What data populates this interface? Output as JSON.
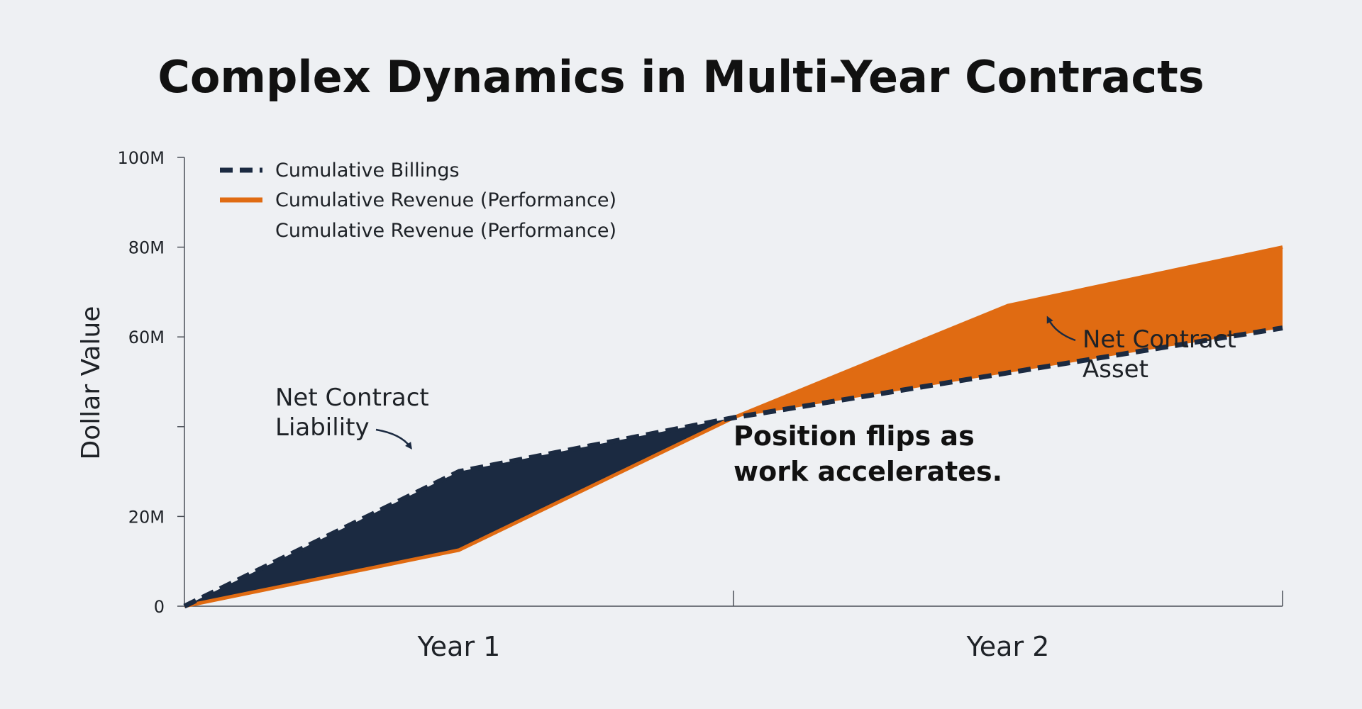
{
  "colors": {
    "background": "#eef0f3",
    "billings": "#1b2a41",
    "revenue": "#e06b12",
    "axis": "#4a4f57",
    "text": "#1e2227"
  },
  "chart_data": {
    "type": "area",
    "title": "Complex Dynamics in Multi-Year Contracts",
    "xlabel": "",
    "ylabel": "Dollar Value",
    "x_tick_labels": [
      "Year 1",
      "Year 2"
    ],
    "y_ticks": [
      0,
      20,
      40,
      60,
      80,
      100
    ],
    "y_tick_labels": [
      "0",
      "20M",
      "",
      "60M",
      "80M",
      "100M"
    ],
    "ylim": [
      0,
      100
    ],
    "xlim": [
      0,
      2
    ],
    "grid": false,
    "legend_position": "top-left",
    "legend": [
      {
        "label": "Cumulative Billings",
        "style": "dashed",
        "color": "#1b2a41"
      },
      {
        "label": "Cumulative Revenue (Performance)",
        "style": "solid",
        "color": "#e06b12"
      },
      {
        "label": "Cumulative Revenue (Performance)",
        "style": "none",
        "color": ""
      }
    ],
    "series": [
      {
        "name": "Cumulative Billings",
        "x": [
          0,
          0.5,
          1.0,
          1.5,
          2.0
        ],
        "values": [
          0,
          30,
          42,
          52,
          62
        ]
      },
      {
        "name": "Cumulative Revenue (Performance)",
        "x": [
          0,
          0.5,
          1.0,
          1.5,
          2.0
        ],
        "values": [
          0,
          12.5,
          42,
          67,
          80
        ]
      }
    ],
    "annotations": [
      {
        "text_lines": [
          "Net Contract",
          "Liability"
        ],
        "x": 0.42,
        "y": 34
      },
      {
        "text_lines": [
          "Net Contract",
          "Asset"
        ],
        "x": 1.58,
        "y": 51
      },
      {
        "text_lines": [
          "Position flips as",
          "work accelerates."
        ],
        "x": 1.0,
        "y": 30
      }
    ]
  }
}
